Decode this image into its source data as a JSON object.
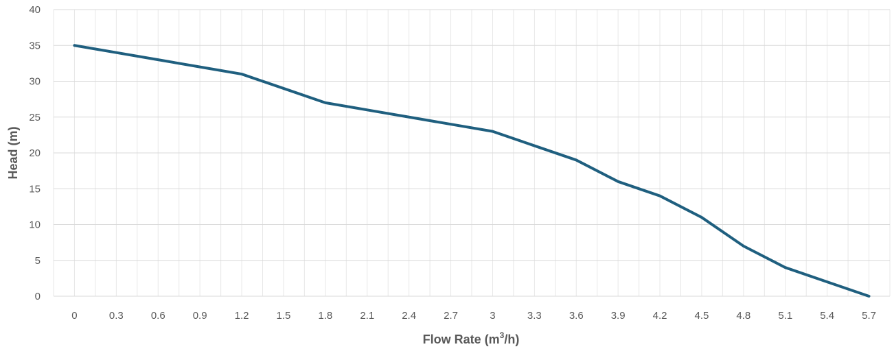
{
  "chart_data": {
    "type": "line",
    "title": "",
    "xlabel": "Flow Rate (m³/h)",
    "xlabel_parts": {
      "base": "Flow Rate (m",
      "sup": "3",
      "tail": "/h)"
    },
    "ylabel": "Head (m)",
    "x": [
      0,
      0.3,
      0.6,
      0.9,
      1.2,
      1.5,
      1.8,
      2.1,
      2.4,
      2.7,
      3,
      3.3,
      3.6,
      3.9,
      4.2,
      4.5,
      4.8,
      5.1,
      5.4,
      5.7
    ],
    "x_tick_labels": [
      "0",
      "0.3",
      "0.6",
      "0.9",
      "1.2",
      "1.5",
      "1.8",
      "2.1",
      "2.4",
      "2.7",
      "3",
      "3.3",
      "3.6",
      "3.9",
      "4.2",
      "4.5",
      "4.8",
      "5.1",
      "5.4",
      "5.7"
    ],
    "series": [
      {
        "values": [
          35,
          34,
          33,
          32,
          31,
          29,
          27,
          26,
          25,
          24,
          23,
          21,
          19,
          16,
          14,
          11,
          7,
          4,
          2,
          0
        ],
        "color": "#1f5f7f"
      }
    ],
    "ylim": [
      0,
      40
    ],
    "y_ticks": [
      0,
      5,
      10,
      15,
      20,
      25,
      30,
      35,
      40
    ],
    "grid": true,
    "legend": "none"
  }
}
